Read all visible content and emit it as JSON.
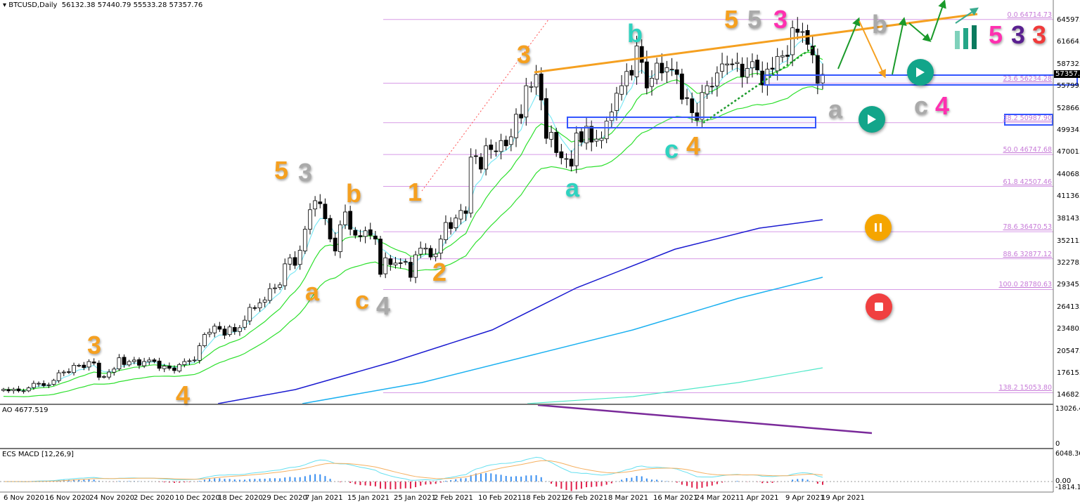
{
  "header": {
    "symbol": "BTCUSD,Daily",
    "open": "56132.38",
    "high": "57440.79",
    "low": "55533.28",
    "close": "57357.76"
  },
  "colors": {
    "bull": "#ffffff",
    "bear": "#000000",
    "fib": "#d79be6",
    "ao_up": "#0000ff",
    "ao_down": "#ff0000",
    "macd_line": "#66e0f0",
    "signal_line": "#f5b060",
    "trend_orange": "#f5a020",
    "arrow_green": "#1a9a2a",
    "box_blue": "#3355ff",
    "button_teal": "#12a58a",
    "button_orange": "#f5a500",
    "button_red": "#f04040"
  },
  "chart_data": {
    "type": "candlestick",
    "title": "BTCUSD,Daily",
    "ylim": [
      14682.55,
      64597.45
    ],
    "y_ticks": [
      "64597.45",
      "61664.80",
      "58732.15",
      "55799.50",
      "52866.85",
      "49934.20",
      "47001.55",
      "44068.90",
      "41136.25",
      "38143.75",
      "35211.10",
      "32278.45",
      "29345.80",
      "26413.15",
      "23480.50",
      "20547.85",
      "17615.20",
      "14682.55"
    ],
    "current_price": "57357.76",
    "x_ticks": [
      "6 Nov 2020",
      "16 Nov 2020",
      "24 Nov 2020",
      "2 Dec 2020",
      "10 Dec 2020",
      "18 Dec 2020",
      "29 Dec 2020",
      "7 Jan 2021",
      "15 Jan 2021",
      "25 Jan 2021",
      "2 Feb 2021",
      "10 Feb 2021",
      "18 Feb 2021",
      "26 Feb 2021",
      "8 Mar 2021",
      "16 Mar 2021",
      "24 Mar 2021",
      "1 Apr 2021",
      "9 Apr 2021",
      "19 Apr 2021"
    ],
    "x_range": [
      "6 Nov 2020",
      "19 Apr 2021"
    ],
    "closes": [
      15.5,
      15.3,
      15.5,
      15.3,
      15.3,
      15.7,
      16.3,
      16.3,
      16.0,
      16.1,
      16.7,
      17.7,
      17.8,
      17.8,
      18.7,
      18.7,
      18.4,
      19.2,
      19.0,
      17.1,
      17.2,
      17.8,
      18.2,
      19.7,
      18.8,
      19.2,
      19.4,
      18.7,
      19.2,
      19.4,
      19.2,
      18.3,
      18.6,
      18.3,
      18.0,
      18.8,
      19.2,
      19.3,
      19.4,
      21.3,
      22.8,
      23.1,
      23.9,
      23.5,
      22.7,
      23.8,
      23.2,
      23.7,
      24.7,
      26.4,
      26.3,
      27.0,
      27.4,
      28.9,
      29.0,
      29.4,
      32.2,
      33.0,
      32.0,
      34.0,
      36.8,
      39.4,
      40.6,
      40.2,
      38.2,
      35.5,
      33.9,
      37.4,
      39.1,
      36.8,
      36.0,
      35.8,
      36.6,
      36.0,
      35.5,
      30.8,
      33.0,
      32.1,
      32.3,
      32.3,
      32.5,
      30.4,
      33.4,
      34.3,
      34.3,
      33.1,
      33.5,
      35.5,
      37.7,
      36.9,
      38.3,
      39.3,
      38.9,
      46.4,
      46.5,
      44.8,
      47.9,
      47.4,
      47.2,
      48.6,
      47.9,
      49.1,
      52.1,
      51.6,
      55.9,
      55.8,
      57.4,
      54.0,
      48.9,
      49.7,
      47.0,
      46.3,
      46.2,
      45.2,
      49.6,
      48.4,
      50.5,
      48.4,
      48.8,
      48.9,
      51.2,
      52.4,
      54.9,
      55.9,
      57.8,
      57.3,
      61.2,
      59.0,
      55.6,
      56.9,
      58.9,
      57.6,
      58.3,
      58.1,
      57.4,
      54.1,
      54.3,
      52.3,
      51.3,
      55.0,
      55.9,
      55.8,
      57.6,
      58.8,
      58.8,
      58.7,
      59.0,
      57.1,
      58.2,
      59.1,
      58.0,
      56.0,
      58.1,
      58.1,
      59.8,
      59.9,
      59.8,
      63.6,
      63.0,
      63.1,
      61.4,
      60.0,
      56.2,
      57.4
    ],
    "close_units": "thousand USD",
    "fib_levels": [
      {
        "label": "0.0 64714.73",
        "price": 64714.73
      },
      {
        "label": "23.6 56234.28",
        "price": 56234.28
      },
      {
        "label": "38.2 50987.90",
        "price": 50987.9
      },
      {
        "label": "50.0 46747.68",
        "price": 46747.68
      },
      {
        "label": "61.8 42507.46",
        "price": 42507.46
      },
      {
        "label": "78.6 36470.53",
        "price": 36470.53
      },
      {
        "label": "88.6 32877.12",
        "price": 32877.12
      },
      {
        "label": "100.0 28780.63",
        "price": 28780.63
      },
      {
        "label": "138.2 15053.80",
        "price": 15053.8
      }
    ],
    "ao": {
      "label": "AO 4677.519",
      "ymax": "13026.403",
      "ymin": "0"
    },
    "macd": {
      "label": "ECS MACD [12,26,9]",
      "ymax": "6048.3604",
      "zero": "0.00",
      "ymin": "-1814.1199"
    }
  },
  "wave_labels": [
    "5",
    "3",
    "b",
    "1",
    "a",
    "c",
    "4",
    "2",
    "3",
    "4",
    "3",
    "b",
    "a",
    "c",
    "4",
    "5",
    "5",
    "3",
    "b",
    "a",
    "c",
    "4",
    "5",
    "3",
    "3"
  ]
}
